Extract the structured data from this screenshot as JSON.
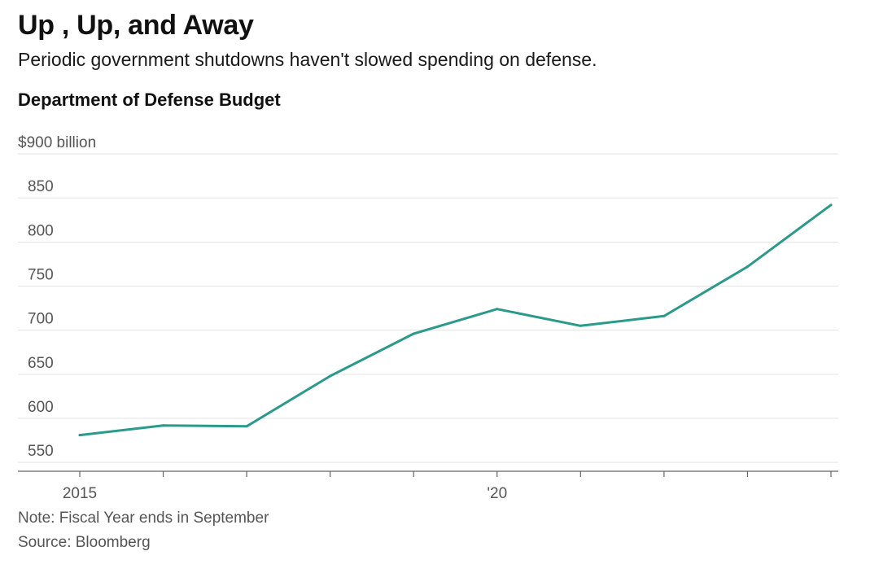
{
  "header": {
    "title": "Up , Up, and Away",
    "subtitle": "Periodic government shutdowns haven't slowed spending on defense.",
    "chart_title": "Department of Defense Budget"
  },
  "footer": {
    "note": "Note: Fiscal Year ends in September",
    "source": "Source: Bloomberg"
  },
  "colors": {
    "line": "#2a9a8a",
    "grid": "#e3e3e3",
    "axis": "#666666",
    "tick_text": "#555555"
  },
  "chart_data": {
    "type": "line",
    "title": "Department of Defense Budget",
    "xlabel": "",
    "ylabel": "",
    "x": [
      2015,
      2016,
      2017,
      2018,
      2019,
      2020,
      2021,
      2022,
      2023,
      2024
    ],
    "series": [
      {
        "name": "Department of Defense Budget",
        "values": [
          581,
          592,
          591,
          648,
          696,
          724,
          705,
          716,
          772,
          842
        ]
      }
    ],
    "ylim": [
      540,
      900
    ],
    "yticks": [
      550,
      600,
      650,
      700,
      750,
      800,
      850,
      900
    ],
    "ytick_labels": [
      "550",
      "600",
      "650",
      "700",
      "750",
      "800",
      "850",
      "$900 billion"
    ],
    "xticks": [
      2015,
      2016,
      2017,
      2018,
      2019,
      2020,
      2021,
      2022,
      2023,
      2024
    ],
    "xtick_labels": [
      {
        "value": 2015,
        "label": "2015"
      },
      {
        "value": 2020,
        "label": "'20"
      }
    ],
    "grid": true,
    "legend": "none"
  }
}
